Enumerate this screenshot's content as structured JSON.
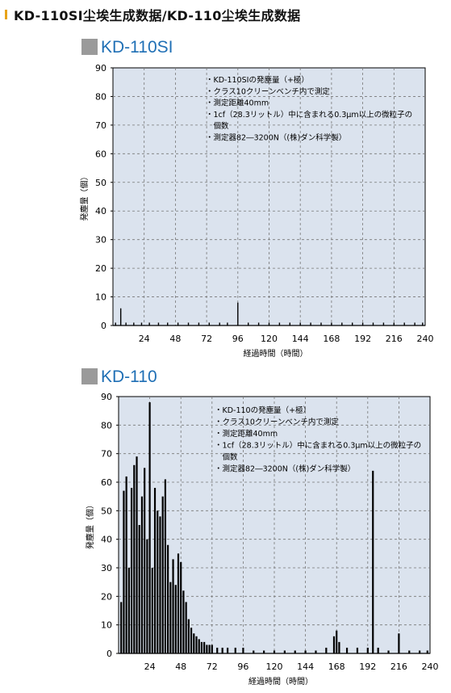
{
  "page_title": "KD-110SI尘埃生成数据/KD-110尘埃生成数据",
  "colors": {
    "plot_bg": "#dbe3ee",
    "title_blue": "#1f6fb5",
    "marker_gray": "#9a9a9a",
    "accent": "#e8a317"
  },
  "chart_data": [
    {
      "type": "bar",
      "title": "KD-110SI",
      "xlabel": "経過時間（時間）",
      "ylabel": "発塵量（個）",
      "xlim": [
        0,
        240
      ],
      "ylim": [
        0,
        90
      ],
      "xticks": [
        24,
        48,
        72,
        96,
        120,
        144,
        168,
        192,
        216,
        240
      ],
      "yticks": [
        0,
        10,
        20,
        30,
        40,
        50,
        60,
        70,
        80,
        90
      ],
      "grid": "dashed",
      "annotations": [
        "・KD-110SIの発塵量（+極）",
        "・クラス10クリーンベンチ内で測定",
        "・測定距離40mm",
        "・1cf（28.3リットル）中に含まれる0.3μm以上の微粒子の",
        "　個数",
        "・測定器82―3200N（(株)ダン科学製）"
      ],
      "x": [
        2,
        6,
        10,
        16,
        22,
        28,
        35,
        42,
        50,
        58,
        66,
        74,
        82,
        88,
        96,
        104,
        112,
        120,
        128,
        136,
        144,
        152,
        160,
        168,
        176,
        184,
        192,
        200,
        208,
        216,
        224,
        232,
        238
      ],
      "values": [
        1,
        6,
        1,
        1,
        1,
        1,
        1,
        1,
        1,
        1,
        1,
        1,
        1,
        1,
        8,
        1,
        1,
        1,
        1,
        1,
        1,
        1,
        1,
        1,
        1,
        1,
        1,
        1,
        1,
        1,
        1,
        1,
        1
      ]
    },
    {
      "type": "bar",
      "title": "KD-110",
      "xlabel": "経過時間（時間）",
      "ylabel": "発塵量（個）",
      "xlim": [
        0,
        240
      ],
      "ylim": [
        0,
        90
      ],
      "xticks": [
        24,
        48,
        72,
        96,
        120,
        144,
        168,
        192,
        216,
        240
      ],
      "yticks": [
        0,
        10,
        20,
        30,
        40,
        50,
        60,
        70,
        80,
        90
      ],
      "grid": "dashed",
      "annotations": [
        "・KD-110の発塵量（+極）",
        "・クラス10クリーンベンチ内で測定",
        "・測定距離40mm",
        "・1cf（28.3リットル）中に含まれる0.3μm以上の微粒子の",
        "　個数",
        "・測定器82―3200N（(株)ダン科学製）"
      ],
      "x": [
        2,
        4,
        6,
        8,
        10,
        12,
        14,
        16,
        18,
        20,
        22,
        24,
        26,
        28,
        30,
        32,
        34,
        36,
        38,
        40,
        42,
        44,
        46,
        48,
        50,
        52,
        54,
        56,
        58,
        60,
        62,
        64,
        66,
        68,
        70,
        72,
        76,
        80,
        84,
        90,
        96,
        104,
        112,
        120,
        128,
        136,
        144,
        152,
        160,
        166,
        168,
        170,
        176,
        184,
        192,
        196,
        200,
        208,
        216,
        224,
        232,
        238
      ],
      "values": [
        18,
        57,
        62,
        30,
        58,
        66,
        69,
        45,
        55,
        65,
        40,
        88,
        30,
        58,
        50,
        48,
        55,
        61,
        38,
        25,
        33,
        24,
        35,
        32,
        22,
        18,
        12,
        9,
        7,
        6,
        5,
        4,
        4,
        3,
        3,
        3,
        2,
        2,
        2,
        2,
        2,
        1,
        1,
        1,
        1,
        1,
        1,
        1,
        2,
        6,
        8,
        4,
        2,
        2,
        2,
        64,
        2,
        1,
        7,
        1,
        1,
        1
      ]
    }
  ]
}
